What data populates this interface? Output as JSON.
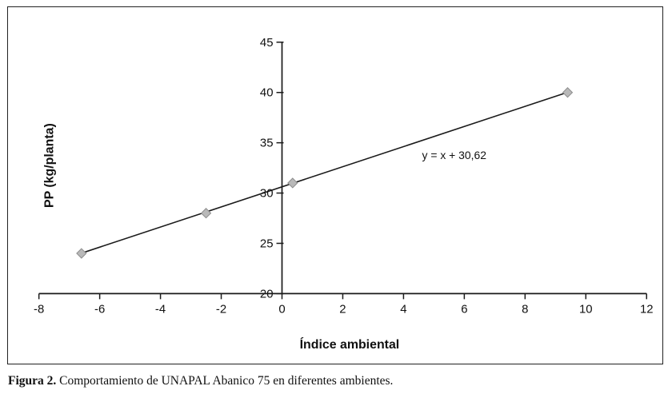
{
  "caption": {
    "label": "Figura 2.",
    "text": " Comportamiento de UNAPAL Abanico 75 en diferentes ambientes."
  },
  "chart_data": {
    "type": "scatter",
    "title": "",
    "xlabel": "Índice ambiental",
    "ylabel": "PP (kg/planta)",
    "xlim": [
      -8,
      12
    ],
    "ylim": [
      20,
      45
    ],
    "x_ticks": [
      -8,
      -6,
      -4,
      -2,
      0,
      2,
      4,
      6,
      8,
      10,
      12
    ],
    "y_ticks": [
      20,
      25,
      30,
      35,
      40,
      45
    ],
    "grid": false,
    "legend": "none",
    "points": [
      {
        "x": -6.6,
        "y": 24.0
      },
      {
        "x": -2.5,
        "y": 28.0
      },
      {
        "x": 0.35,
        "y": 31.0
      },
      {
        "x": 9.4,
        "y": 40.0
      }
    ],
    "trendline": {
      "slope": 1,
      "intercept": 30.62,
      "x_start": -6.6,
      "x_end": 9.4
    },
    "annotation": "y = x + 30,62",
    "annotation_pos": {
      "x": 4.6,
      "y": 33.9
    },
    "marker": "diamond",
    "marker_color": "#b9b9b9",
    "marker_edge_color": "#8c8c8c",
    "line_color": "#1a1a1a",
    "axis_color": "#1a1a1a",
    "tick_label_color": "#111111"
  }
}
